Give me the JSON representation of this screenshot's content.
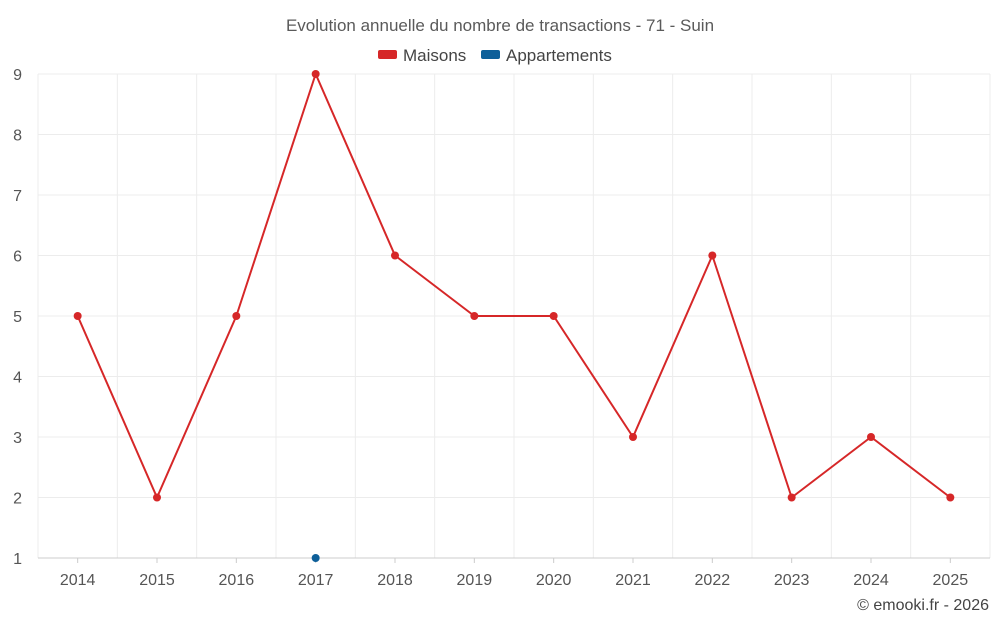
{
  "chart_data": {
    "type": "line",
    "title": "Evolution annuelle du nombre de transactions - 71 - Suin",
    "categories": [
      "2014",
      "2015",
      "2016",
      "2017",
      "2018",
      "2019",
      "2020",
      "2021",
      "2022",
      "2023",
      "2024",
      "2025"
    ],
    "ylim": [
      1,
      9
    ],
    "yticks": [
      1,
      2,
      3,
      4,
      5,
      6,
      7,
      8,
      9
    ],
    "grid": true,
    "legend_position": "top-center",
    "series": [
      {
        "name": "Maisons",
        "color": "#d62728",
        "values": [
          5,
          2,
          5,
          9,
          6,
          5,
          5,
          3,
          6,
          2,
          3,
          2
        ]
      },
      {
        "name": "Appartements",
        "color": "#0d5f99",
        "values": [
          null,
          null,
          null,
          1,
          null,
          null,
          null,
          null,
          null,
          null,
          null,
          null
        ]
      }
    ]
  },
  "credit": "© emooki.fr - 2026"
}
